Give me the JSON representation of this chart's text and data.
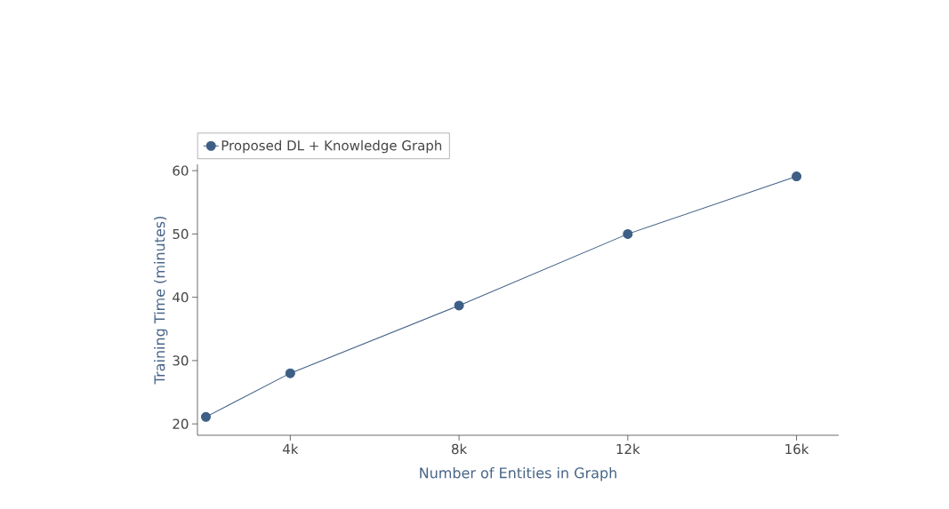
{
  "chart_data": {
    "type": "line",
    "xlabel": "Number of Entities in Graph",
    "ylabel": "Training Time (minutes)",
    "x": [
      2000,
      4000,
      8000,
      12000,
      16000
    ],
    "series": [
      {
        "name": "Proposed DL + Knowledge Graph",
        "color": "#3e5f85",
        "values": [
          21.1,
          28.0,
          38.7,
          50.0,
          59.1
        ]
      }
    ],
    "xlim": [
      1800,
      17000
    ],
    "ylim": [
      18.2,
      61
    ],
    "xticks": [
      {
        "value": 4000,
        "label": "4k"
      },
      {
        "value": 8000,
        "label": "8k"
      },
      {
        "value": 12000,
        "label": "12k"
      },
      {
        "value": 16000,
        "label": "16k"
      }
    ],
    "yticks": [
      20,
      30,
      40,
      50,
      60
    ],
    "legend": "top left",
    "marker": "circle"
  }
}
